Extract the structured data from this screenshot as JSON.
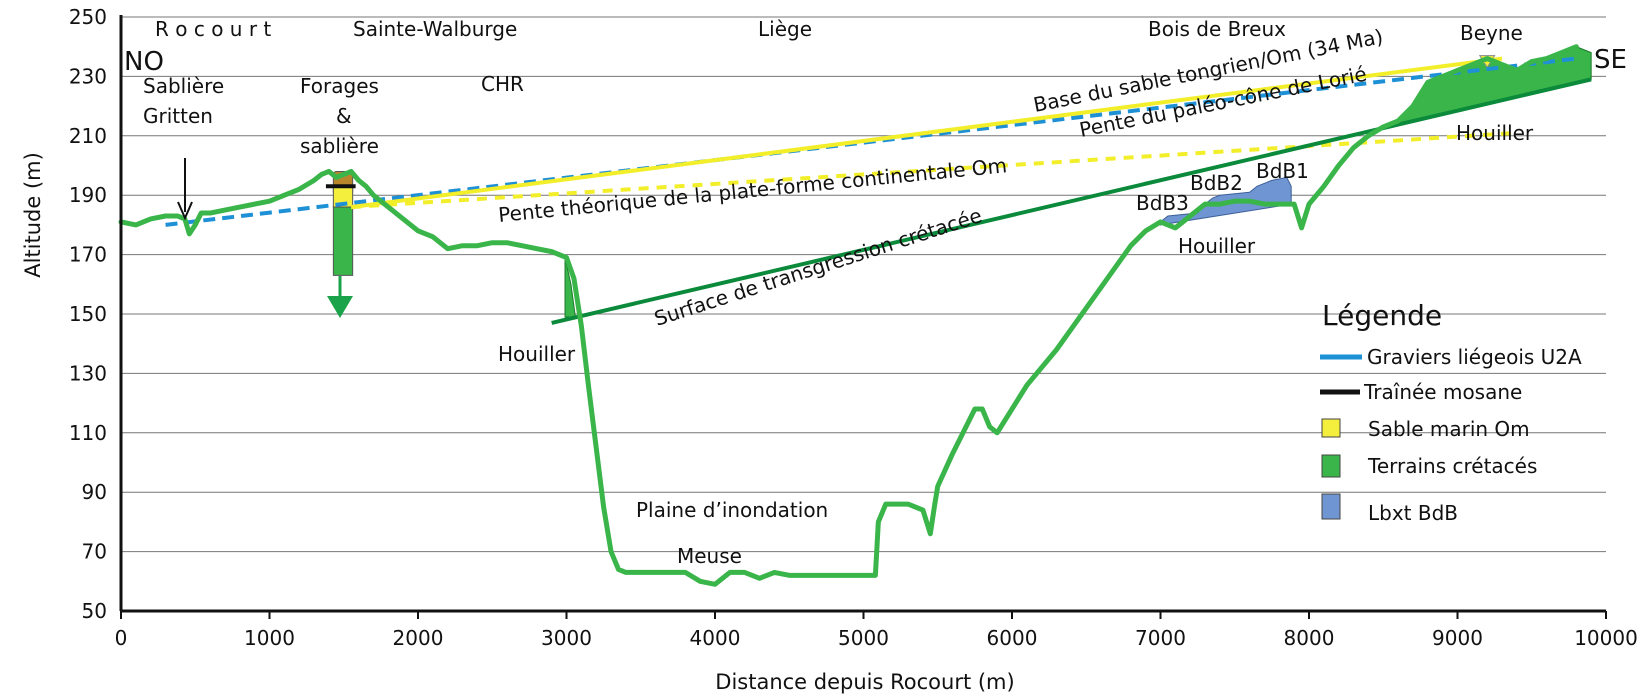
{
  "chart_data": {
    "type": "line",
    "xlabel": "Distance depuis Rocourt (m)",
    "ylabel": "Altitude (m)",
    "xlim": [
      0,
      10000
    ],
    "ylim": [
      50,
      250
    ],
    "xticks": [
      0,
      1000,
      2000,
      3000,
      4000,
      5000,
      6000,
      7000,
      8000,
      9000,
      10000
    ],
    "yticks": [
      50,
      70,
      90,
      110,
      130,
      150,
      170,
      190,
      210,
      230,
      250
    ],
    "grid": "horizontal",
    "colors": {
      "profile": "#3ab54a",
      "gravel": "#1e90d6",
      "sand": "#f2ee2a",
      "sand_fill": "#f3ef3c",
      "cretaceous": "#3ab54a",
      "cretaceous_line": "#0a8a3a",
      "bauxite": "#6f96d2",
      "mosane": "#111111",
      "clay": "#b8862b"
    },
    "profile": {
      "x": [
        0,
        100,
        200,
        300,
        380,
        430,
        460,
        500,
        540,
        600,
        700,
        800,
        900,
        1000,
        1100,
        1200,
        1300,
        1350,
        1400,
        1450,
        1500,
        1550,
        1600,
        1650,
        1700,
        1800,
        1900,
        2000,
        2100,
        2200,
        2300,
        2400,
        2500,
        2600,
        2700,
        2800,
        2900,
        3000,
        3050,
        3100,
        3150,
        3200,
        3250,
        3300,
        3350,
        3400,
        3500,
        3600,
        3700,
        3800,
        3900,
        4000,
        4100,
        4200,
        4300,
        4400,
        4500,
        4600,
        4700,
        4800,
        4900,
        5000,
        5080,
        5100,
        5150,
        5200,
        5300,
        5400,
        5450,
        5480,
        5500,
        5600,
        5700,
        5750,
        5800,
        5850,
        5900,
        6000,
        6100,
        6200,
        6300,
        6400,
        6500,
        6600,
        6700,
        6800,
        6900,
        7000,
        7100,
        7200,
        7300,
        7400,
        7500,
        7600,
        7700,
        7800,
        7900,
        7950,
        8000,
        8100,
        8200,
        8300,
        8400,
        8500,
        8600,
        8700,
        8800,
        8900,
        9000,
        9100,
        9200,
        9300,
        9400,
        9500,
        9600,
        9700,
        9800
      ],
      "y": [
        181,
        180,
        182,
        183,
        183,
        182,
        177,
        180,
        184,
        184,
        185,
        186,
        187,
        188,
        190,
        192,
        195,
        197,
        198,
        196,
        197,
        198,
        195,
        193,
        190,
        186,
        182,
        178,
        176,
        172,
        173,
        173,
        174,
        174,
        173,
        172,
        171,
        169,
        162,
        146,
        125,
        105,
        85,
        70,
        64,
        63,
        63,
        63,
        63,
        63,
        60,
        59,
        63,
        63,
        61,
        63,
        62,
        62,
        62,
        62,
        62,
        62,
        62,
        80,
        86,
        86,
        86,
        84,
        76,
        86,
        92,
        103,
        113,
        118,
        118,
        112,
        110,
        118,
        126,
        132,
        138,
        145,
        152,
        159,
        166,
        173,
        178,
        181,
        179,
        183,
        187,
        187,
        188,
        188,
        187,
        187,
        187,
        179,
        187,
        193,
        200,
        206,
        210,
        213,
        215,
        220,
        228,
        230,
        232,
        234,
        236,
        234,
        232,
        235,
        236,
        238,
        240
      ]
    },
    "lines": [
      {
        "name": "Graviers liégeois U2A",
        "style": "dashed",
        "x": [
          300,
          9800
        ],
        "y": [
          180,
          236
        ]
      },
      {
        "name": "Base du sable tongrien/Om (34 Ma)",
        "style": "solid",
        "x": [
          1550,
          9300
        ],
        "y": [
          186,
          236
        ]
      },
      {
        "name": "Pente théorique de la plate-forme continentale Om",
        "style": "dashed",
        "x": [
          1550,
          9400
        ],
        "y": [
          186,
          211
        ]
      },
      {
        "name": "Surface de transgression crétacée",
        "style": "solid",
        "x": [
          2900,
          9900
        ],
        "y": [
          147,
          229
        ]
      }
    ],
    "deposits": [
      {
        "type": "clay",
        "x": [
          1430,
          1560
        ],
        "y": [
          190,
          198
        ]
      },
      {
        "type": "sand",
        "x": [
          1430,
          1560
        ],
        "y": [
          186,
          193
        ]
      },
      {
        "type": "cretaceous",
        "x": [
          1430,
          1560
        ],
        "y": [
          163,
          186
        ]
      },
      {
        "type": "mosane",
        "x": [
          1380,
          1580
        ],
        "y": [
          193,
          193
        ]
      },
      {
        "type": "cretaceous",
        "x": [
          2990,
          3060
        ],
        "y": [
          149,
          169
        ]
      },
      {
        "type": "bauxite",
        "x": [
          7000,
          7880
        ],
        "y": [
          180,
          196
        ]
      },
      {
        "type": "cretaceous",
        "x": [
          8600,
          9900
        ],
        "y": [
          215,
          240
        ]
      },
      {
        "type": "sand",
        "x": [
          9150,
          9250
        ],
        "y": [
          233,
          237
        ]
      }
    ],
    "annotations": {
      "rocourt": "R o c o u r t",
      "ste_walburge": "Sainte-Walburge",
      "liege": "Liège",
      "bois_breux": "Bois de Breux",
      "beyne": "Beyne",
      "no": "NO",
      "se": "SE",
      "sabliere": "Sablière",
      "gritten": "Gritten",
      "forages": "Forages",
      "amp": "&",
      "sabliere2": "sablière",
      "chr": "CHR",
      "base_sable": "Base du sable tongrien/Om (34 Ma)",
      "pente_lorie": "Pente du paléo-cône de Lorié",
      "houiller_se": "Houiller",
      "pente_theorique": "Pente théorique de la plate-forme continentale Om",
      "bdb1": "BdB1",
      "bdb2": "BdB2",
      "bdb3": "BdB3",
      "houiller_mid": "Houiller",
      "surface": "Surface de transgression crétacée",
      "houiller_w": "Houiller",
      "plaine": "Plaine d’inondation",
      "meuse": "Meuse"
    },
    "legend": {
      "title": "Légende",
      "placement": "right",
      "entries": [
        {
          "label": "Graviers liégeois U2A",
          "marker": "line-blue"
        },
        {
          "label": "Traînée mosane",
          "marker": "line-black"
        },
        {
          "label": "Sable marin Om",
          "marker": "square-yellow"
        },
        {
          "label": "Terrains crétacés",
          "marker": "square-green"
        },
        {
          "label": "Lbxt BdB",
          "marker": "square-blue"
        }
      ]
    }
  }
}
